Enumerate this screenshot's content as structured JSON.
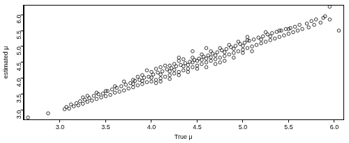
{
  "chart_data": {
    "type": "scatter",
    "x_label": "True μ",
    "y_label": "estimated μ",
    "color": "#000000",
    "marker": "circle",
    "grid": false,
    "x": [
      2.65,
      2.87,
      3.05,
      3.07,
      3.1,
      3.12,
      3.15,
      3.18,
      3.2,
      3.22,
      3.25,
      3.27,
      3.3,
      3.32,
      3.35,
      3.37,
      3.4,
      3.42,
      3.45,
      3.47,
      3.5,
      3.52,
      3.55,
      3.57,
      3.6,
      3.62,
      3.65,
      3.67,
      3.7,
      3.72,
      3.75,
      3.77,
      3.8,
      3.82,
      3.85,
      3.87,
      3.9,
      3.92,
      3.95,
      3.97,
      4.0,
      4.02,
      4.05,
      4.07,
      4.1,
      4.12,
      4.15,
      4.17,
      4.2,
      4.22,
      4.25,
      4.27,
      4.3,
      4.32,
      4.35,
      4.37,
      4.4,
      4.42,
      4.45,
      4.47,
      4.5,
      4.52,
      4.55,
      4.57,
      4.6,
      4.62,
      4.65,
      4.67,
      4.7,
      4.72,
      4.75,
      4.77,
      4.8,
      4.82,
      4.85,
      4.87,
      4.9,
      4.92,
      4.95,
      4.97,
      5.0,
      5.02,
      5.05,
      5.07,
      5.1,
      5.12,
      5.15,
      5.17,
      5.2,
      5.22,
      5.25,
      5.27,
      5.3,
      5.32,
      5.35,
      5.37,
      5.4,
      5.42,
      5.45,
      5.47,
      5.5,
      5.52,
      5.55,
      5.57,
      5.6,
      5.62,
      5.65,
      5.7,
      5.72,
      5.75,
      5.78,
      5.8,
      5.85,
      5.88,
      5.9,
      5.95,
      5.95,
      6.05,
      3.8,
      3.9,
      4.0,
      4.05,
      4.1,
      4.2,
      4.25,
      4.3,
      4.35,
      4.4,
      4.45,
      4.5,
      4.55,
      4.6,
      4.65,
      4.7,
      4.75,
      4.8,
      4.85,
      4.9,
      4.95,
      5.0,
      5.05,
      5.1,
      4.15,
      4.3,
      4.1,
      3.6,
      3.5,
      3.4,
      3.7,
      4.45,
      4.5,
      4.6,
      4.7,
      4.55,
      4.65,
      4.4,
      4.35,
      4.25,
      4.8,
      4.9,
      5.0,
      5.2,
      5.3,
      4.2,
      4.1,
      4.0,
      3.9,
      3.8,
      3.3,
      3.25,
      3.95,
      4.05,
      4.75,
      5.05,
      5.25,
      5.4,
      5.5,
      4.3,
      4.45,
      4.6,
      3.85,
      4.2
    ],
    "values": [
      2.77,
      2.9,
      3.03,
      3.1,
      3.05,
      3.18,
      3.12,
      3.22,
      3.15,
      3.28,
      3.2,
      3.33,
      3.26,
      3.38,
      3.3,
      3.45,
      3.35,
      3.5,
      3.4,
      3.52,
      3.44,
      3.6,
      3.48,
      3.65,
      3.55,
      3.7,
      3.58,
      3.75,
      3.62,
      3.8,
      3.68,
      3.85,
      3.72,
      3.92,
      3.78,
      3.95,
      3.82,
      4.02,
      3.88,
      4.05,
      3.9,
      4.12,
      3.95,
      4.18,
      4.0,
      4.22,
      4.05,
      4.28,
      4.1,
      4.32,
      4.15,
      4.38,
      4.2,
      4.42,
      4.25,
      4.48,
      4.3,
      4.52,
      4.35,
      4.58,
      4.4,
      4.62,
      4.45,
      4.68,
      4.5,
      4.72,
      4.55,
      4.78,
      4.6,
      4.82,
      4.65,
      4.88,
      4.7,
      4.92,
      4.75,
      4.98,
      4.8,
      5.02,
      4.85,
      5.08,
      4.9,
      5.12,
      4.95,
      5.18,
      5.0,
      5.22,
      5.05,
      5.28,
      5.1,
      5.32,
      5.15,
      5.38,
      5.2,
      5.42,
      5.25,
      5.46,
      5.3,
      5.5,
      5.35,
      5.55,
      5.4,
      5.58,
      5.45,
      5.62,
      5.5,
      5.68,
      5.55,
      5.72,
      5.6,
      5.8,
      5.68,
      5.85,
      5.75,
      5.9,
      5.95,
      5.85,
      6.25,
      5.5,
      3.95,
      4.1,
      4.2,
      4.3,
      3.9,
      4.4,
      4.45,
      4.1,
      4.6,
      4.2,
      4.65,
      4.3,
      4.75,
      4.35,
      4.85,
      4.45,
      4.95,
      4.55,
      5.05,
      4.65,
      5.15,
      4.8,
      5.2,
      4.85,
      4.4,
      4.55,
      4.35,
      3.75,
      3.6,
      3.55,
      3.9,
      4.5,
      4.55,
      4.62,
      4.72,
      4.58,
      4.66,
      4.42,
      4.38,
      4.27,
      4.82,
      4.93,
      5.02,
      5.22,
      5.32,
      4.22,
      4.12,
      4.02,
      3.92,
      3.82,
      3.45,
      3.4,
      4.25,
      3.85,
      4.5,
      5.3,
      5.45,
      5.5,
      5.55,
      4.65,
      4.85,
      4.95,
      4.05,
      3.98
    ],
    "xlim": [
      2.6,
      6.1
    ],
    "xticks": [
      {
        "value": 3,
        "label": "3.0"
      },
      {
        "value": 3.5,
        "label": "3.5"
      },
      {
        "value": 4,
        "label": "4.0"
      },
      {
        "value": 4.5,
        "label": "4.5"
      },
      {
        "value": 5,
        "label": "5.0"
      },
      {
        "value": 5.5,
        "label": "5.5"
      },
      {
        "value": 6,
        "label": "6.0"
      }
    ],
    "ylim": [
      2.7,
      6.3
    ],
    "yticks": [
      {
        "value": 3,
        "label": "3.0"
      },
      {
        "value": 3.5,
        "label": "3.5"
      },
      {
        "value": 4,
        "label": "4.0"
      },
      {
        "value": 4.5,
        "label": "4.5"
      },
      {
        "value": 5,
        "label": "5.0"
      },
      {
        "value": 5.5,
        "label": "5.5"
      },
      {
        "value": 6,
        "label": "6.0"
      }
    ]
  }
}
